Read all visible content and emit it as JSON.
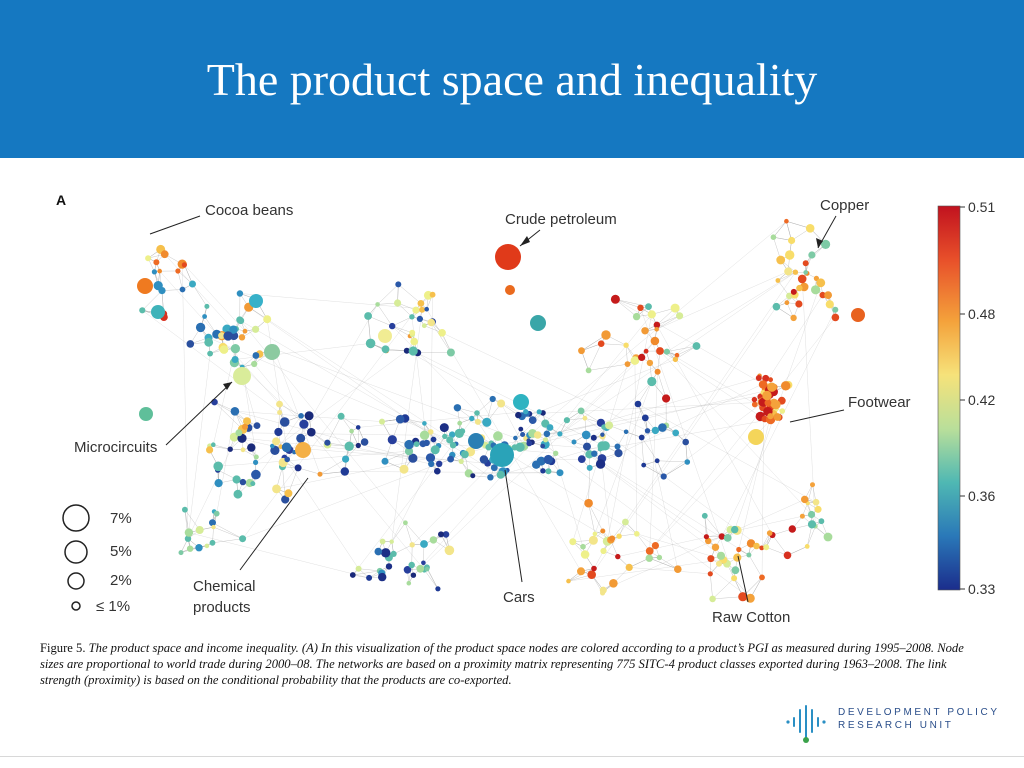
{
  "slide": {
    "title": "The product space and inequality",
    "panel_label": "A"
  },
  "labels": {
    "cocoa": "Cocoa beans",
    "petroleum": "Crude petroleum",
    "copper": "Copper",
    "microcircuits": "Microcircuits",
    "footwear": "Footwear",
    "chemical_1": "Chemical",
    "chemical_2": "products",
    "cars": "Cars",
    "cotton": "Raw Cotton"
  },
  "size_legend": [
    {
      "label": "7%",
      "share": 7
    },
    {
      "label": "5%",
      "share": 5
    },
    {
      "label": "2%",
      "share": 2
    },
    {
      "label": "≤ 1%",
      "share": 1
    }
  ],
  "colorbar": {
    "ticks": [
      "0.51",
      "0.48",
      "0.42",
      "0.36",
      "0.33"
    ],
    "colors": [
      "#c1121f",
      "#e8502a",
      "#f4a23b",
      "#f6e27a",
      "#b9df9a",
      "#4fb8b3",
      "#2a78b8",
      "#1b2d8c"
    ]
  },
  "caption": {
    "lead": "Figure 5.",
    "body": "The product space and income inequality. (A) In this visualization of the product space nodes are colored according to a product’s PGI as measured during 1995–2008. Node sizes are proportional to world trade during 2000–08. The networks are based on a proximity matrix representing 775 SITC-4 product classes exported during 1963–2008. The link strength (proximity) is based on the conditional probability that the products are co-exported."
  },
  "logo": {
    "line1": "DEVELOPMENT POLICY",
    "line2": "RESEARCH UNIT"
  }
}
